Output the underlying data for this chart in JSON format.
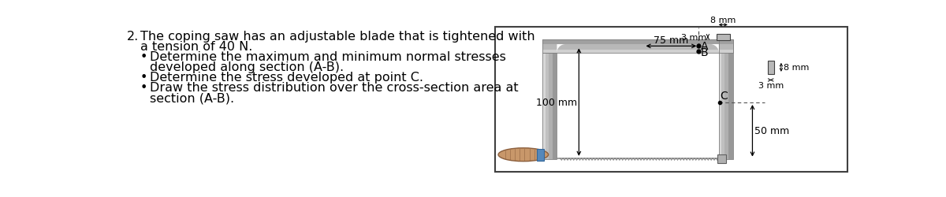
{
  "title_num": "2.",
  "title_text_line1": "The coping saw has an adjustable blade that is tightened with",
  "title_text_line2": "a tension of 40 N.",
  "bullet1_line1": "Determine the maximum and minimum normal stresses",
  "bullet1_line2": "developed along section (A-B).",
  "bullet2": "Determine the stress developed at point C.",
  "bullet3_line1": "Draw the stress distribution over the cross-section area at",
  "bullet3_line2": "section (A-B).",
  "dim_75mm": "75 mm",
  "dim_100mm": "100 mm",
  "dim_50mm": "50 mm",
  "dim_8mm_top": "8 mm",
  "dim_3mm_top": "3 mm",
  "dim_8mm_right": "8 mm",
  "dim_3mm_right": "3 mm",
  "label_A": "A",
  "label_B": "B",
  "label_C": "C",
  "bg": "#ffffff",
  "text_color": "#000000",
  "frame_fill": "#c0c0c0",
  "frame_edge": "#808080",
  "frame_light": "#e0e0e0",
  "frame_dark": "#606060",
  "handle_brown": "#c8976a",
  "handle_dark": "#8B5E3C",
  "handle_blue": "#5588bb",
  "cs_fill": "#b8b8b8",
  "cs_edge": "#404040",
  "box_edge": "#404040"
}
